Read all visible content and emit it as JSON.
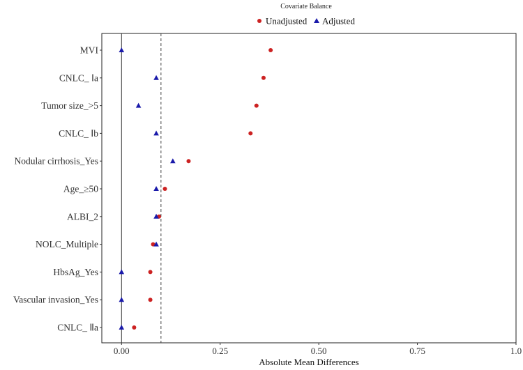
{
  "chart_data": {
    "type": "scatter",
    "title": "Covariate Balance",
    "xlabel": "Absolute Mean Differences",
    "ylabel": "",
    "xlim": [
      -0.05,
      1.0
    ],
    "xticks": [
      "0.00",
      "0.25",
      "0.50",
      "0.75",
      "1.0"
    ],
    "xtick_values": [
      0,
      0.25,
      0.5,
      0.75,
      1.0
    ],
    "threshold": 0.1,
    "zero_line": 0,
    "grid": false,
    "legend_position": "top",
    "categories": [
      "MVI",
      "CNLC_ Ⅰa",
      "Tumor size_>5",
      "CNLC_ Ⅰb",
      "Nodular cirrhosis_Yes",
      "Age_≥50",
      "ALBI_2",
      "NOLC_Multiple",
      "HbsAg_Yes",
      "Vascular invasion_Yes",
      "CNLC_ Ⅱa"
    ],
    "series": [
      {
        "name": "Unadjusted",
        "marker": "circle",
        "color": "#cc2222",
        "values": [
          0.378,
          0.36,
          0.342,
          0.327,
          0.17,
          0.11,
          0.095,
          0.08,
          0.073,
          0.073,
          0.032
        ]
      },
      {
        "name": "Adjusted",
        "marker": "triangle",
        "color": "#1a1aaa",
        "values": [
          0.0,
          0.088,
          0.043,
          0.088,
          0.13,
          0.088,
          0.088,
          0.088,
          0.0,
          0.0,
          0.0
        ]
      }
    ]
  }
}
